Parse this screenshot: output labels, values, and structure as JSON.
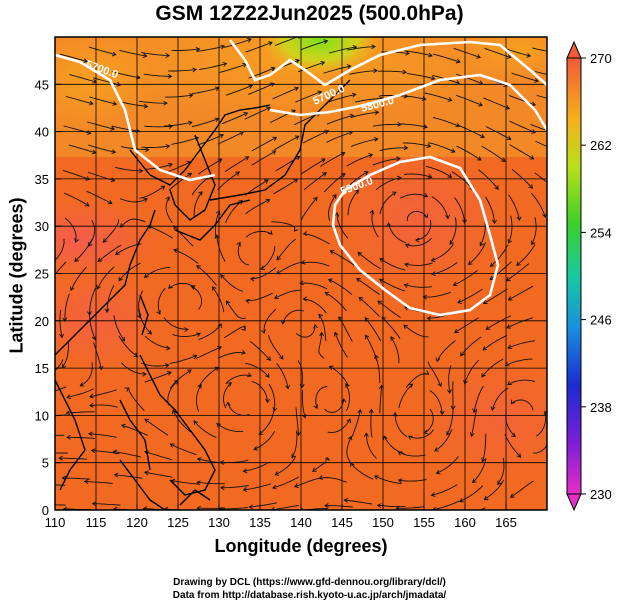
{
  "title": "GSM 12Z22Jun2025 (500.0hPa)",
  "x_axis": {
    "label": "Longitude (degrees)",
    "range": [
      110,
      170
    ],
    "ticks": [
      "110",
      "115",
      "120",
      "125",
      "130",
      "135",
      "140",
      "145",
      "150",
      "155",
      "160",
      "165"
    ]
  },
  "y_axis": {
    "label": "Latitude  (degrees)",
    "range": [
      0,
      50
    ],
    "ticks": [
      "0",
      "5",
      "10",
      "15",
      "20",
      "25",
      "30",
      "35",
      "40",
      "45"
    ]
  },
  "colorbar": {
    "ticks": [
      "230",
      "238",
      "246",
      "254",
      "262",
      "270"
    ],
    "min": 230,
    "max": 270
  },
  "contour_labels": [
    "5700.0",
    "5700.0",
    "5800.0",
    "5900.0"
  ],
  "credits": {
    "line1": "Drawing by DCL (https://www.gfd-dennou.org/library/dcl/)",
    "line2": "Data from http://database.rish.kyoto-u.ac.jp/arch/jmadata/"
  }
}
